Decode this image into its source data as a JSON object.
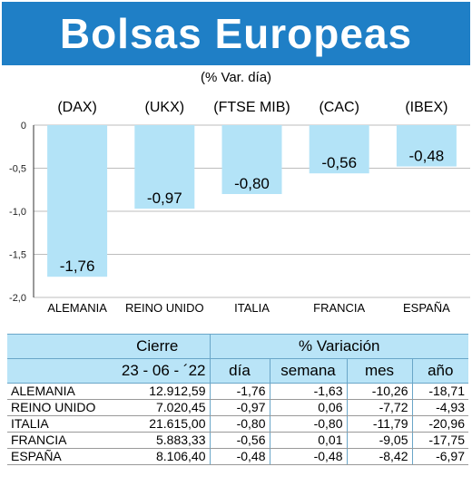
{
  "header": {
    "title": "Bolsas Europeas",
    "subtitle": "(% Var. día)",
    "color": "#1f7fc6"
  },
  "chart_data": {
    "type": "bar",
    "indices": [
      "(DAX)",
      "(UKX)",
      "(FTSE MIB)",
      "(CAC)",
      "(IBEX)"
    ],
    "categories": [
      "ALEMANIA",
      "REINO UNIDO",
      "ITALIA",
      "FRANCIA",
      "ESPAÑA"
    ],
    "values": [
      -1.76,
      -0.97,
      -0.8,
      -0.56,
      -0.48
    ],
    "value_labels": [
      "-1,76",
      "-0,97",
      "-0,80",
      "-0,56",
      "-0,48"
    ],
    "ylim": [
      -2.0,
      0
    ],
    "yticks": [
      0,
      -0.5,
      -1.0,
      -1.5,
      -2.0
    ],
    "ytick_labels": [
      "0",
      "-0,5",
      "-1,0",
      "-1,5",
      "-2,0"
    ],
    "grid": true,
    "bar_color": "#b3e3f7"
  },
  "table": {
    "header_row1": [
      "Cierre",
      "% Variación"
    ],
    "header_row2": [
      "23 - 06 - ´22",
      "día",
      "semana",
      "mes",
      "año"
    ],
    "header_color": "#b9e4f7",
    "rows": [
      {
        "name": "ALEMANIA",
        "cierre": "12.912,59",
        "dia": "-1,76",
        "semana": "-1,63",
        "mes": "-10,26",
        "anio": "-18,71"
      },
      {
        "name": "REINO UNIDO",
        "cierre": "7.020,45",
        "dia": "-0,97",
        "semana": "0,06",
        "mes": "-7,72",
        "anio": "-4,93"
      },
      {
        "name": "ITALIA",
        "cierre": "21.615,00",
        "dia": "-0,80",
        "semana": "-0,80",
        "mes": "-11,79",
        "anio": "-20,96"
      },
      {
        "name": "FRANCIA",
        "cierre": "5.883,33",
        "dia": "-0,56",
        "semana": "0,01",
        "mes": "-9,05",
        "anio": "-17,75"
      },
      {
        "name": "ESPAÑA",
        "cierre": "8.106,40",
        "dia": "-0,48",
        "semana": "-0,48",
        "mes": "-8,42",
        "anio": "-6,97"
      }
    ]
  }
}
